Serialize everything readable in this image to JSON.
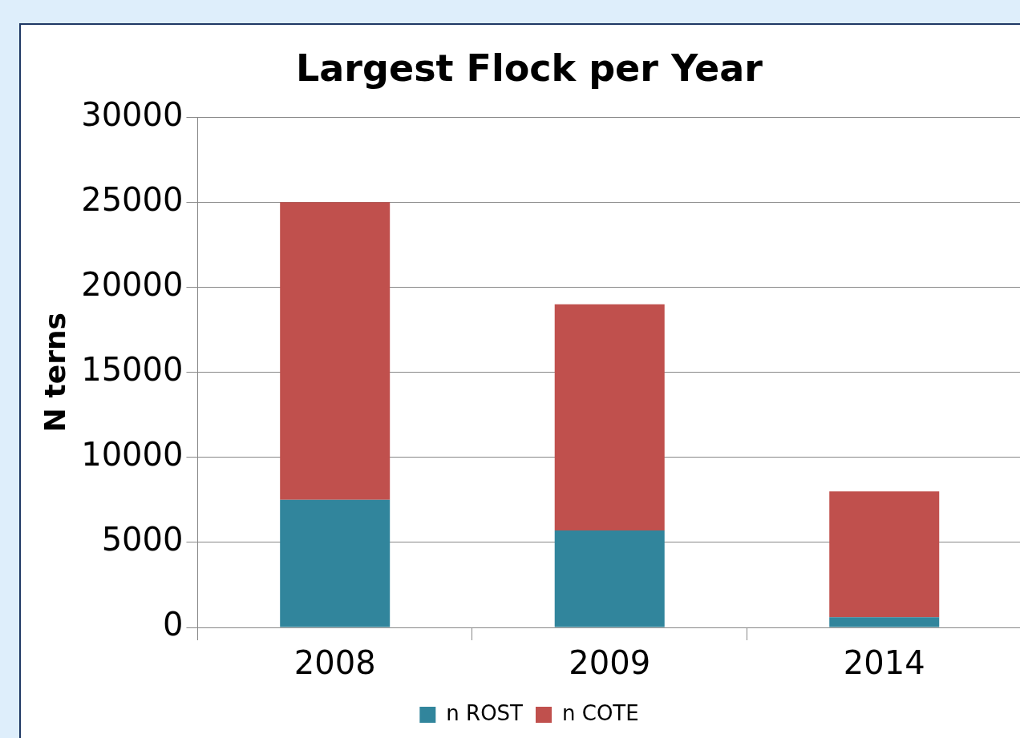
{
  "chart_data": {
    "type": "bar",
    "title": "Largest Flock per Year",
    "ylabel": "N terns",
    "categories": [
      "2008",
      "2009",
      "2014"
    ],
    "series": [
      {
        "name": "n ROST",
        "color": "#31859c",
        "values": [
          7500,
          5700,
          600
        ]
      },
      {
        "name": "n COTE",
        "color": "#c0504d",
        "values": [
          17500,
          13300,
          7400
        ]
      }
    ],
    "stacked": true,
    "ylim": [
      0,
      30000
    ],
    "yticks": [
      0,
      5000,
      10000,
      15000,
      20000,
      25000,
      30000
    ],
    "grid": "y",
    "legend": "bottom"
  }
}
